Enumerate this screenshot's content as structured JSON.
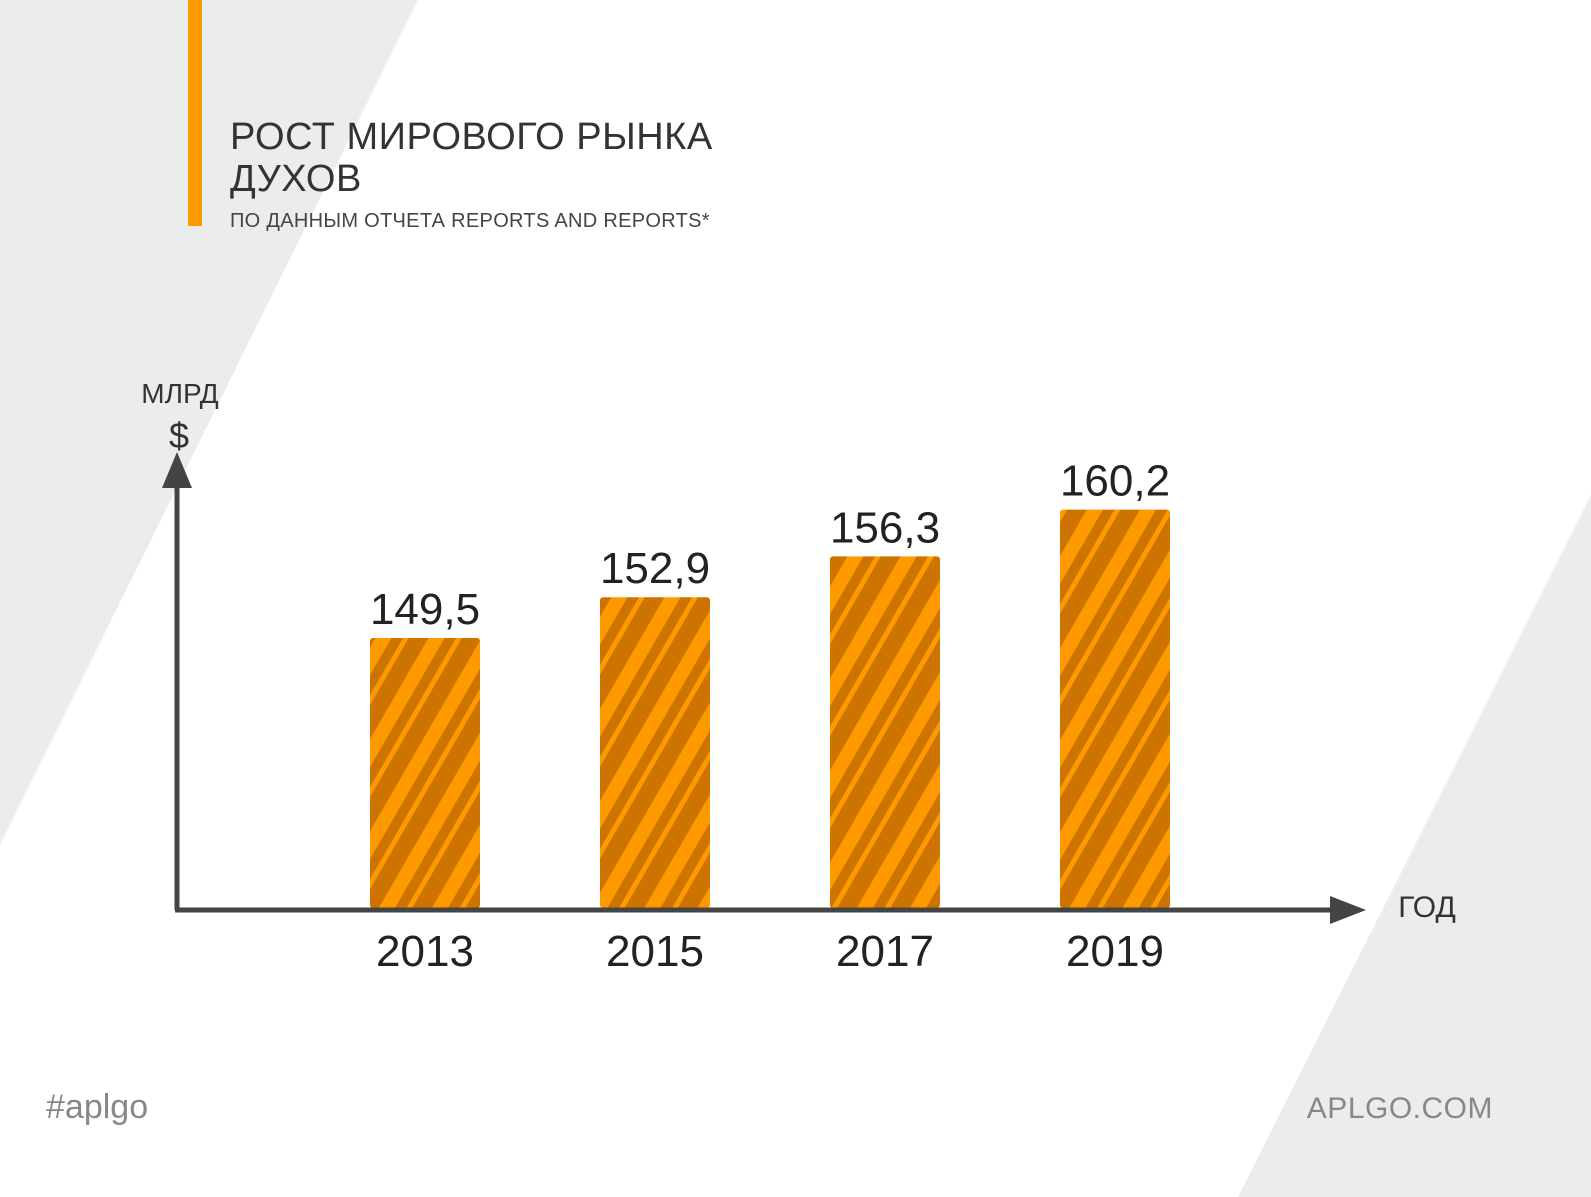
{
  "colors": {
    "accent": "#ff9900",
    "bar_dark": "#cc7300",
    "bar_stripe": "#ff9900",
    "axis": "#444444",
    "background_shape": "#ebeced",
    "footer_text": "#888888"
  },
  "header": {
    "title_line1": "РОСТ МИРОВОГО РЫНКА",
    "title_line2": "ДУХОВ",
    "subtitle": "ПО ДАННЫМ ОТЧЕТА REPORTS AND REPORTS*"
  },
  "chart_data": {
    "type": "bar",
    "categories": [
      "2013",
      "2015",
      "2017",
      "2019"
    ],
    "values": [
      149.5,
      152.9,
      156.3,
      160.2
    ],
    "value_labels": [
      "149,5",
      "152,9",
      "156,3",
      "160,2"
    ],
    "title": "РОСТ МИРОВОГО РЫНКА ДУХОВ",
    "ylabel_line1": "МЛРД",
    "ylabel_line2": "$",
    "xlabel": "ГОД",
    "ylim": [
      127,
      163
    ],
    "grid": false,
    "bar_fill": "diagonal-stripes"
  },
  "footer": {
    "hashtag": "#aplgo",
    "website": "APLGO.COM"
  }
}
